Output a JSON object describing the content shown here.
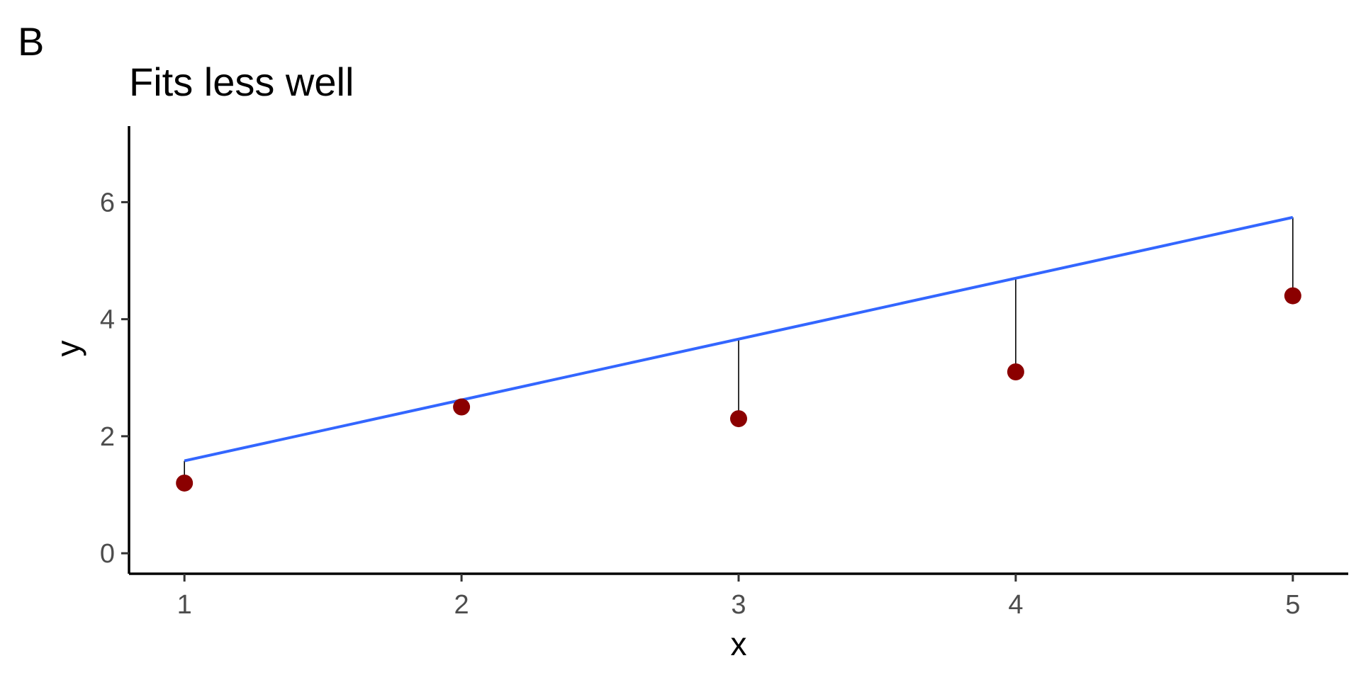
{
  "panel_label": "B",
  "chart_data": {
    "type": "scatter",
    "title": "Fits less well",
    "xlabel": "x",
    "ylabel": "y",
    "xlim": [
      0.8,
      5.2
    ],
    "ylim": [
      -0.35,
      7.3
    ],
    "x_ticks": [
      1,
      2,
      3,
      4,
      5
    ],
    "y_ticks": [
      0,
      2,
      4,
      6
    ],
    "grid": false,
    "legend": "none",
    "points": {
      "x": [
        1,
        2,
        3,
        4,
        5
      ],
      "y": [
        1.2,
        2.5,
        2.3,
        3.1,
        4.4
      ],
      "color": "#8b0000"
    },
    "fit_line": {
      "x": [
        1,
        5
      ],
      "y": [
        1.58,
        5.74
      ],
      "color": "#3366ff"
    },
    "residual_color": "#000000"
  }
}
